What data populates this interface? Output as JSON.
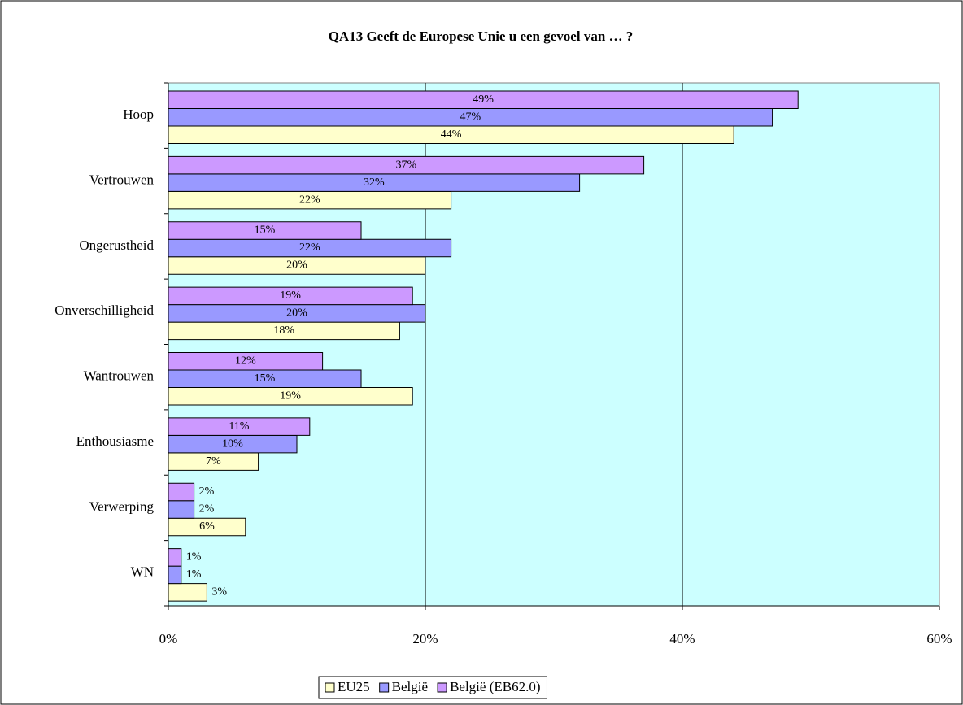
{
  "chart_data": {
    "type": "hbar",
    "title": "QA13 Geeft de Europese Unie u een gevoel van … ?",
    "categories": [
      "Hoop",
      "Vertrouwen",
      "Ongerustheid",
      "Onverschilligheid",
      "Wantrouwen",
      "Enthousiasme",
      "Verwerping",
      "WN"
    ],
    "series": [
      {
        "name": "EU25",
        "color": "#ffffcc",
        "values": [
          44,
          22,
          20,
          18,
          19,
          7,
          6,
          3
        ],
        "value_labels": [
          "44%",
          "22%",
          "20%",
          "18%",
          "19%",
          "7%",
          "6%",
          "3%"
        ]
      },
      {
        "name": "België",
        "color": "#9999ff",
        "values": [
          47,
          32,
          22,
          20,
          15,
          10,
          2,
          1
        ],
        "value_labels": [
          "47%",
          "32%",
          "22%",
          "20%",
          "15%",
          "10%",
          "2%",
          "1%"
        ]
      },
      {
        "name": "België (EB62.0)",
        "color": "#cc99ff",
        "values": [
          49,
          37,
          15,
          19,
          12,
          11,
          2,
          1
        ],
        "value_labels": [
          "49%",
          "37%",
          "15%",
          "19%",
          "12%",
          "11%",
          "2%",
          "1%"
        ]
      }
    ],
    "xlim": [
      0,
      60
    ],
    "xticks": [
      {
        "value": 0,
        "label": "0%"
      },
      {
        "value": 20,
        "label": "20%"
      },
      {
        "value": 40,
        "label": "40%"
      },
      {
        "value": 60,
        "label": "60%"
      }
    ],
    "grid": true,
    "legend": "bottom"
  }
}
